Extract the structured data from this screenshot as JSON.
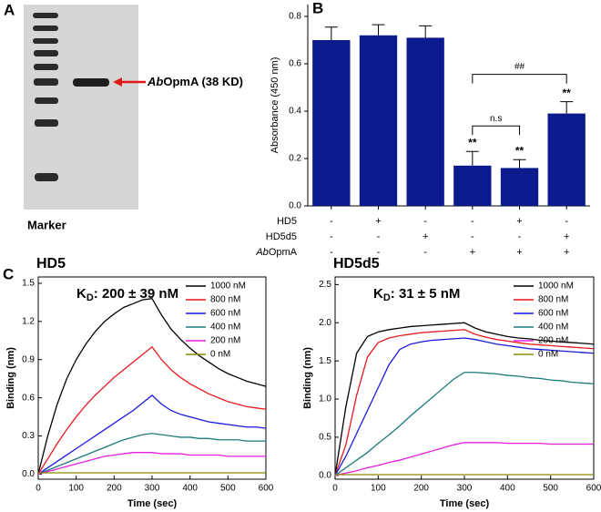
{
  "panel_labels": [
    "A",
    "B",
    "C"
  ],
  "gel": {
    "label_italic": "Ab",
    "label": "OpmA (38 KD)",
    "marker": "Marker"
  },
  "chart_data": [
    {
      "type": "bar",
      "ylabel": "Absorbance (450 nm)",
      "color": "#0b1a8c",
      "values": [
        0.7,
        0.72,
        0.71,
        0.17,
        0.16,
        0.39
      ],
      "errors": [
        0.055,
        0.045,
        0.05,
        0.06,
        0.035,
        0.05
      ],
      "bar_labels": [
        null,
        null,
        null,
        "**",
        "**",
        "**"
      ],
      "brackets": [
        "n.s",
        "##"
      ],
      "ylim": [
        0,
        0.85
      ],
      "yticks": [
        {
          "value": 0,
          "label": "0.0"
        },
        0.2,
        0.4,
        0.6,
        0.8
      ],
      "conditions": [
        {
          "name": "HD5",
          "marks": [
            "-",
            "+",
            "-",
            "-",
            "+",
            "-"
          ]
        },
        {
          "name": "HD5d5",
          "marks": [
            "-",
            "-",
            "+",
            "-",
            "-",
            "+"
          ]
        },
        {
          "name_italic": "Ab",
          "name": "OpmA",
          "marks": [
            "-",
            "-",
            "-",
            "+",
            "+",
            "+"
          ]
        }
      ]
    },
    {
      "type": "line",
      "title": "HD5",
      "kd": {
        "k": "K",
        "sub": "D",
        "text": ": 200 ± 39 nM"
      },
      "xlabel": "Time (sec)",
      "ylabel": "Binding (nm)",
      "xlim": [
        0,
        600
      ],
      "xticks": [
        0,
        100,
        200,
        300,
        400,
        500,
        600
      ],
      "ylim": [
        -0.04,
        1.55
      ],
      "yticks": [
        {
          "value": 0,
          "label": "0.0"
        },
        0.3,
        0.6,
        0.9,
        1.2,
        1.5
      ],
      "x": [
        0,
        25,
        50,
        75,
        100,
        125,
        150,
        175,
        200,
        225,
        250,
        275,
        300,
        325,
        350,
        375,
        400,
        425,
        450,
        475,
        500,
        525,
        550,
        575,
        600
      ],
      "series": [
        {
          "name": "1000 nM",
          "color": "#000000",
          "values": [
            0,
            0.3,
            0.55,
            0.75,
            0.9,
            1.02,
            1.12,
            1.2,
            1.26,
            1.31,
            1.34,
            1.37,
            1.38,
            1.25,
            1.14,
            1.06,
            0.99,
            0.93,
            0.88,
            0.83,
            0.79,
            0.76,
            0.73,
            0.71,
            0.69
          ]
        },
        {
          "name": "800 nM",
          "color": "#e8191e",
          "values": [
            0,
            0.12,
            0.24,
            0.35,
            0.45,
            0.54,
            0.62,
            0.69,
            0.76,
            0.82,
            0.88,
            0.94,
            1.0,
            0.9,
            0.82,
            0.76,
            0.71,
            0.67,
            0.63,
            0.6,
            0.57,
            0.55,
            0.53,
            0.52,
            0.51
          ]
        },
        {
          "name": "600 nM",
          "color": "#1a1adc",
          "values": [
            0,
            0.05,
            0.1,
            0.15,
            0.2,
            0.25,
            0.3,
            0.35,
            0.4,
            0.45,
            0.5,
            0.56,
            0.62,
            0.55,
            0.5,
            0.47,
            0.45,
            0.43,
            0.41,
            0.4,
            0.39,
            0.38,
            0.37,
            0.37,
            0.36
          ]
        },
        {
          "name": "400 nM",
          "color": "#1e7a7a",
          "values": [
            0,
            0.03,
            0.06,
            0.09,
            0.12,
            0.15,
            0.18,
            0.21,
            0.24,
            0.27,
            0.29,
            0.31,
            0.32,
            0.31,
            0.3,
            0.29,
            0.29,
            0.28,
            0.28,
            0.27,
            0.27,
            0.27,
            0.26,
            0.26,
            0.26
          ]
        },
        {
          "name": "200 nM",
          "color": "#e81ee0",
          "values": [
            0,
            0.02,
            0.04,
            0.06,
            0.08,
            0.1,
            0.12,
            0.14,
            0.15,
            0.16,
            0.17,
            0.17,
            0.17,
            0.16,
            0.16,
            0.16,
            0.15,
            0.15,
            0.15,
            0.15,
            0.14,
            0.14,
            0.14,
            0.14,
            0.14
          ]
        },
        {
          "name": "0 nM",
          "color": "#8a8a00",
          "values": [
            0.01,
            0.01,
            0.01,
            0.01,
            0.01,
            0.01,
            0.01,
            0.01,
            0.01,
            0.01,
            0.01,
            0.01,
            0.01,
            0.01,
            0.01,
            0.01,
            0.01,
            0.01,
            0.01,
            0.01,
            0.01,
            0.01,
            0.01,
            0.01,
            0.01
          ]
        }
      ]
    },
    {
      "type": "line",
      "title": "HD5d5",
      "kd": {
        "k": "K",
        "sub": "D",
        "text": ": 31 ± 5 nM"
      },
      "xlabel": "Time (sec)",
      "ylabel": "Binding (nm)",
      "xlim": [
        0,
        600
      ],
      "xticks": [
        0,
        100,
        200,
        300,
        400,
        500,
        600
      ],
      "ylim": [
        -0.05,
        2.6
      ],
      "yticks": [
        {
          "value": 0,
          "label": "0.0"
        },
        0.5,
        {
          "value": 1,
          "label": "1.0"
        },
        1.5,
        {
          "value": 2,
          "label": "2.0"
        },
        2.5
      ],
      "x": [
        0,
        25,
        50,
        75,
        100,
        125,
        150,
        175,
        200,
        225,
        250,
        275,
        300,
        325,
        350,
        375,
        400,
        425,
        450,
        475,
        500,
        525,
        550,
        575,
        600
      ],
      "series": [
        {
          "name": "1000 nM",
          "color": "#000000",
          "values": [
            0,
            0.9,
            1.6,
            1.82,
            1.88,
            1.91,
            1.93,
            1.95,
            1.96,
            1.97,
            1.98,
            1.99,
            2.0,
            1.93,
            1.88,
            1.85,
            1.82,
            1.8,
            1.79,
            1.77,
            1.76,
            1.75,
            1.74,
            1.73,
            1.72
          ]
        },
        {
          "name": "800 nM",
          "color": "#e8191e",
          "values": [
            0,
            0.4,
            1.05,
            1.55,
            1.74,
            1.8,
            1.83,
            1.85,
            1.87,
            1.88,
            1.89,
            1.9,
            1.91,
            1.85,
            1.81,
            1.78,
            1.76,
            1.74,
            1.72,
            1.71,
            1.7,
            1.69,
            1.68,
            1.67,
            1.66
          ]
        },
        {
          "name": "600 nM",
          "color": "#1a1adc",
          "values": [
            0,
            0.25,
            0.55,
            0.85,
            1.15,
            1.45,
            1.65,
            1.72,
            1.75,
            1.77,
            1.78,
            1.79,
            1.8,
            1.78,
            1.75,
            1.72,
            1.7,
            1.68,
            1.66,
            1.65,
            1.64,
            1.63,
            1.62,
            1.61,
            1.6
          ]
        },
        {
          "name": "400 nM",
          "color": "#1e7a7a",
          "values": [
            0,
            0.1,
            0.2,
            0.3,
            0.42,
            0.53,
            0.65,
            0.78,
            0.9,
            1.02,
            1.14,
            1.26,
            1.35,
            1.35,
            1.34,
            1.33,
            1.31,
            1.3,
            1.28,
            1.27,
            1.25,
            1.24,
            1.22,
            1.21,
            1.2
          ]
        },
        {
          "name": "200 nM",
          "color": "#e81ee0",
          "values": [
            0,
            0.03,
            0.06,
            0.1,
            0.13,
            0.17,
            0.2,
            0.24,
            0.28,
            0.32,
            0.36,
            0.4,
            0.43,
            0.43,
            0.43,
            0.43,
            0.42,
            0.42,
            0.42,
            0.42,
            0.41,
            0.41,
            0.41,
            0.41,
            0.41
          ]
        },
        {
          "name": "0 nM",
          "color": "#8a8a00",
          "values": [
            0.01,
            0.01,
            0.01,
            0.01,
            0.01,
            0.01,
            0.01,
            0.01,
            0.01,
            0.01,
            0.01,
            0.01,
            0.01,
            0.01,
            0.01,
            0.01,
            0.01,
            0.01,
            0.01,
            0.01,
            0.01,
            0.01,
            0.01,
            0.01,
            0.01
          ]
        }
      ]
    }
  ]
}
